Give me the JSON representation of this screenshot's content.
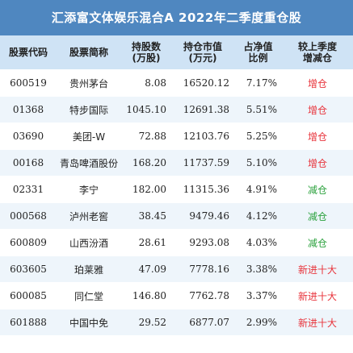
{
  "title": "汇添富文体娱乐混合A 2022年二季度重仓股",
  "headers": [
    {
      "line1": "股票代码",
      "line2": ""
    },
    {
      "line1": "股票简称",
      "line2": ""
    },
    {
      "line1": "持股数",
      "line2": "(万股)"
    },
    {
      "line1": "持仓市值",
      "line2": "(万元)"
    },
    {
      "line1": "占净值",
      "line2": "比例"
    },
    {
      "line1": "较上季度",
      "line2": "增减仓"
    }
  ],
  "rows": [
    {
      "code": "600519",
      "name": "贵州茅台",
      "shares": "8.08",
      "value": "16520.12",
      "ratio": "7.17%",
      "change": "增仓",
      "kind": "inc"
    },
    {
      "code": "01368",
      "name": "特步国际",
      "shares": "1045.10",
      "value": "12691.38",
      "ratio": "5.51%",
      "change": "增仓",
      "kind": "inc"
    },
    {
      "code": "03690",
      "name": "美团-W",
      "shares": "72.88",
      "value": "12103.76",
      "ratio": "5.25%",
      "change": "增仓",
      "kind": "inc"
    },
    {
      "code": "00168",
      "name": "青岛啤酒股份",
      "shares": "168.20",
      "value": "11737.59",
      "ratio": "5.10%",
      "change": "增仓",
      "kind": "inc"
    },
    {
      "code": "02331",
      "name": "李宁",
      "shares": "182.00",
      "value": "11315.36",
      "ratio": "4.91%",
      "change": "减仓",
      "kind": "dec"
    },
    {
      "code": "000568",
      "name": "泸州老窖",
      "shares": "38.45",
      "value": "9479.46",
      "ratio": "4.12%",
      "change": "减仓",
      "kind": "dec"
    },
    {
      "code": "600809",
      "name": "山西汾酒",
      "shares": "28.61",
      "value": "9293.08",
      "ratio": "4.03%",
      "change": "减仓",
      "kind": "dec"
    },
    {
      "code": "603605",
      "name": "珀莱雅",
      "shares": "47.09",
      "value": "7778.16",
      "ratio": "3.38%",
      "change": "新进十大",
      "kind": "new"
    },
    {
      "code": "600085",
      "name": "同仁堂",
      "shares": "146.80",
      "value": "7762.78",
      "ratio": "3.37%",
      "change": "新进十大",
      "kind": "new"
    },
    {
      "code": "601888",
      "name": "中国中免",
      "shares": "29.52",
      "value": "6877.07",
      "ratio": "2.99%",
      "change": "新进十大",
      "kind": "new"
    }
  ],
  "colors": {
    "header_bg": "#4f87c0",
    "subheader_bg": "#cfe3f5",
    "increase": "#e8323a",
    "decrease": "#2aa13c"
  }
}
